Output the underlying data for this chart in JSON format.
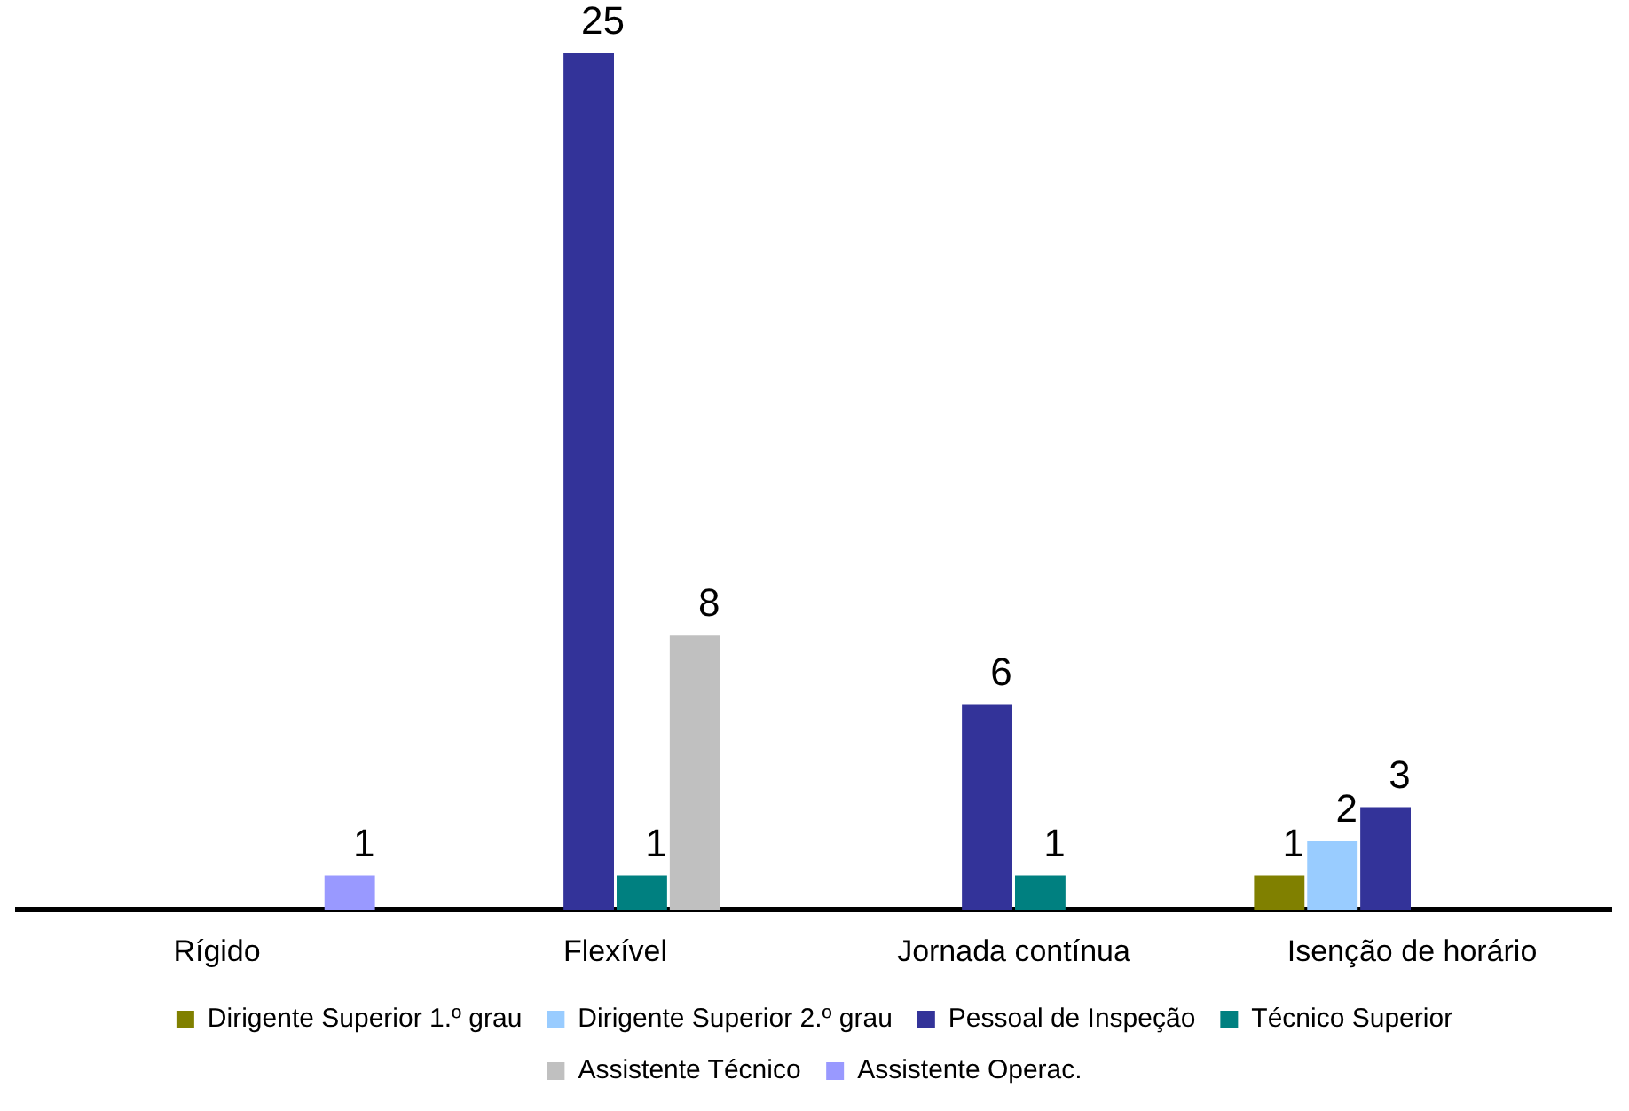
{
  "chart_data": {
    "type": "bar",
    "categories": [
      "Rígido",
      "Flexível",
      "Jornada contínua",
      "Isenção de horário"
    ],
    "series": [
      {
        "name": "Dirigente Superior 1.º grau",
        "color": "#808000",
        "values": [
          null,
          null,
          null,
          1
        ]
      },
      {
        "name": "Dirigente Superior 2.º grau",
        "color": "#99ccff",
        "values": [
          null,
          null,
          null,
          2
        ]
      },
      {
        "name": "Pessoal de Inspeção",
        "color": "#333399",
        "values": [
          null,
          25,
          6,
          3
        ]
      },
      {
        "name": "Técnico Superior",
        "color": "#008080",
        "values": [
          null,
          1,
          1,
          null
        ]
      },
      {
        "name": "Assistente Técnico",
        "color": "#c0c0c0",
        "values": [
          null,
          8,
          null,
          null
        ]
      },
      {
        "name": "Assistente Operac.",
        "color": "#9999ff",
        "values": [
          1,
          null,
          null,
          null
        ]
      }
    ],
    "data_labels": true,
    "grid": false,
    "legend": "bottom"
  }
}
